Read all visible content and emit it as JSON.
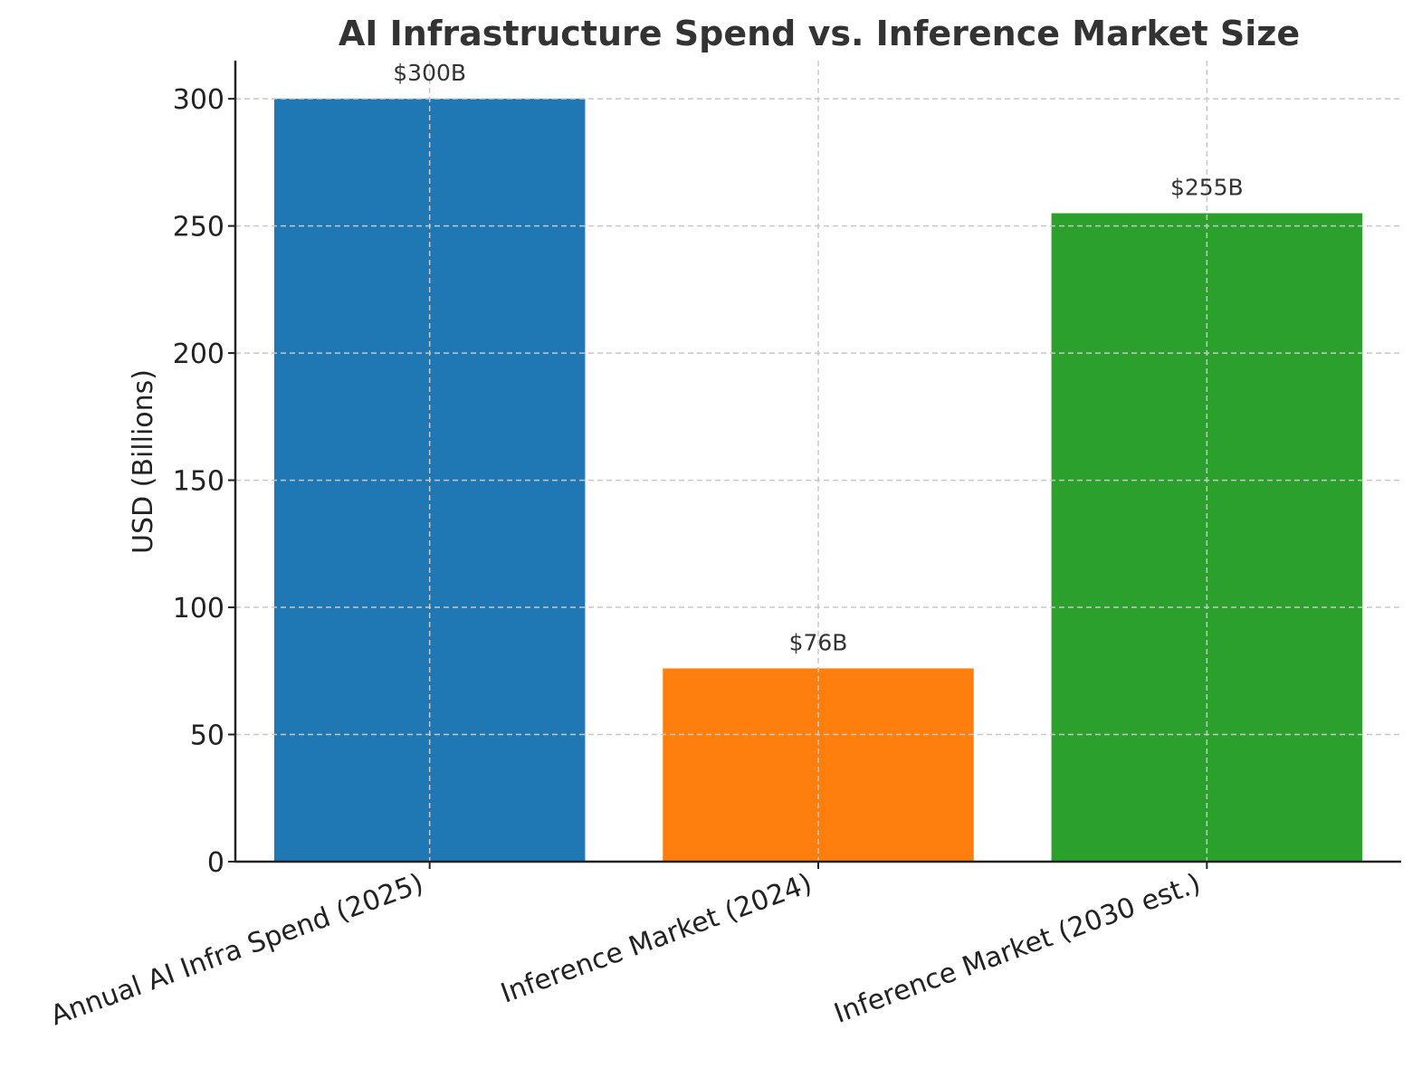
{
  "chart_data": {
    "type": "bar",
    "title": "AI Infrastructure Spend vs. Inference Market Size",
    "xlabel": "",
    "ylabel": "USD (Billions)",
    "ylim": [
      0,
      315
    ],
    "yticks": [
      0,
      50,
      100,
      150,
      200,
      250,
      300
    ],
    "grid": true,
    "categories": [
      "Annual AI Infra Spend (2025)",
      "Inference Market (2024)",
      "Inference Market (2030 est.)"
    ],
    "values": [
      300,
      76,
      255
    ],
    "data_labels": [
      "$300B",
      "$76B",
      "$255B"
    ],
    "colors": [
      "#1f77b4",
      "#ff7f0e",
      "#2ca02c"
    ]
  }
}
